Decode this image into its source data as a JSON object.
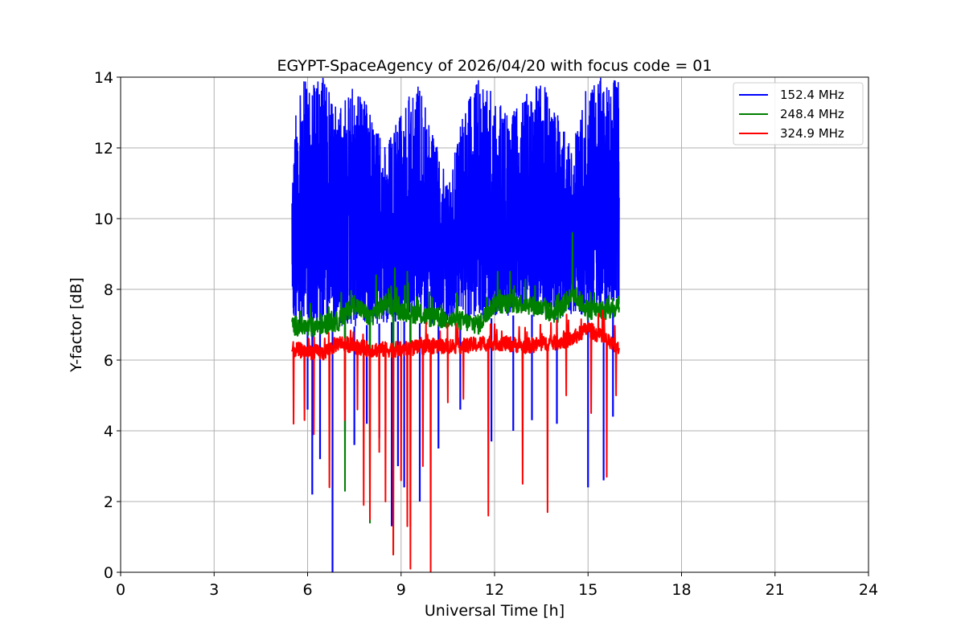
{
  "chart_data": {
    "type": "line",
    "title": "EGYPT-SpaceAgency of 2026/04/20 with focus code = 01",
    "xlabel": "Universal Time [h]",
    "ylabel": "Y-factor [dB]",
    "xlim": [
      0,
      24
    ],
    "ylim": [
      0,
      14
    ],
    "xticks": [
      0,
      3,
      6,
      9,
      12,
      15,
      18,
      21,
      24
    ],
    "yticks": [
      0,
      2,
      4,
      6,
      8,
      10,
      12,
      14
    ],
    "xtick_labels": [
      "0",
      "3",
      "6",
      "9",
      "12",
      "15",
      "18",
      "21",
      "24"
    ],
    "ytick_labels": [
      "0",
      "2",
      "4",
      "6",
      "8",
      "10",
      "12",
      "14"
    ],
    "grid": true,
    "legend_position": "top-right",
    "series": [
      {
        "name": "152.4 MHz",
        "color": "#0000ff",
        "t_start": 5.5,
        "t_end": 16.0,
        "band_high": [
          [
            5.5,
            11.2
          ],
          [
            5.7,
            14.0
          ],
          [
            6.5,
            14.0
          ],
          [
            7.0,
            13.0
          ],
          [
            7.5,
            14.0
          ],
          [
            8.5,
            12.0
          ],
          [
            9.5,
            14.0
          ],
          [
            10.5,
            11.0
          ],
          [
            11.0,
            13.0
          ],
          [
            11.5,
            14.0
          ],
          [
            12.5,
            13.0
          ],
          [
            13.5,
            14.0
          ],
          [
            14.5,
            12.0
          ],
          [
            15.0,
            14.0
          ],
          [
            15.5,
            14.0
          ],
          [
            16.0,
            14.0
          ]
        ],
        "band_low": [
          [
            5.5,
            6.6
          ],
          [
            6.0,
            7.0
          ],
          [
            7.0,
            6.9
          ],
          [
            8.0,
            7.0
          ],
          [
            9.0,
            7.1
          ],
          [
            10.0,
            7.0
          ],
          [
            11.0,
            7.0
          ],
          [
            12.0,
            7.2
          ],
          [
            13.0,
            7.3
          ],
          [
            14.0,
            7.2
          ],
          [
            15.0,
            7.3
          ],
          [
            16.0,
            7.4
          ]
        ],
        "dips": [
          [
            6.0,
            4.6
          ],
          [
            6.15,
            2.2
          ],
          [
            6.4,
            3.2
          ],
          [
            6.8,
            0.0
          ],
          [
            7.2,
            4.0
          ],
          [
            7.5,
            3.6
          ],
          [
            7.9,
            4.2
          ],
          [
            8.3,
            3.8
          ],
          [
            8.7,
            1.3
          ],
          [
            8.9,
            3.0
          ],
          [
            9.1,
            2.4
          ],
          [
            9.3,
            4.5
          ],
          [
            9.6,
            2.0
          ],
          [
            10.2,
            3.5
          ],
          [
            10.9,
            4.6
          ],
          [
            11.9,
            3.7
          ],
          [
            12.6,
            4.0
          ],
          [
            13.2,
            4.3
          ],
          [
            14.0,
            4.2
          ],
          [
            15.0,
            2.4
          ],
          [
            15.5,
            2.6
          ],
          [
            15.8,
            4.4
          ]
        ]
      },
      {
        "name": "248.4 MHz",
        "color": "#008000",
        "t_start": 5.5,
        "t_end": 16.0,
        "baseline": [
          [
            5.5,
            7.0
          ],
          [
            6.0,
            6.9
          ],
          [
            7.0,
            7.1
          ],
          [
            7.5,
            7.6
          ],
          [
            8.0,
            7.2
          ],
          [
            8.5,
            7.6
          ],
          [
            9.0,
            7.4
          ],
          [
            10.0,
            7.2
          ],
          [
            11.0,
            7.1
          ],
          [
            11.5,
            7.0
          ],
          [
            12.0,
            7.6
          ],
          [
            13.0,
            7.6
          ],
          [
            14.0,
            7.3
          ],
          [
            14.5,
            7.9
          ],
          [
            15.0,
            7.4
          ],
          [
            16.0,
            7.4
          ]
        ],
        "peaks": [
          [
            7.2,
            8.0
          ],
          [
            8.2,
            8.4
          ],
          [
            8.8,
            8.6
          ],
          [
            9.2,
            8.5
          ],
          [
            12.1,
            8.5
          ],
          [
            12.5,
            8.5
          ],
          [
            13.3,
            8.1
          ],
          [
            14.5,
            9.6
          ],
          [
            15.2,
            7.9
          ]
        ],
        "dips": [
          [
            7.2,
            2.3
          ],
          [
            8.0,
            1.4
          ],
          [
            8.75,
            0.5
          ],
          [
            9.3,
            1.3
          ]
        ]
      },
      {
        "name": "324.9 MHz",
        "color": "#ff0000",
        "t_start": 5.5,
        "t_end": 16.0,
        "baseline": [
          [
            5.5,
            6.3
          ],
          [
            6.5,
            6.2
          ],
          [
            7.0,
            6.5
          ],
          [
            8.0,
            6.3
          ],
          [
            9.0,
            6.3
          ],
          [
            10.0,
            6.4
          ],
          [
            11.0,
            6.4
          ],
          [
            12.0,
            6.5
          ],
          [
            13.0,
            6.4
          ],
          [
            14.0,
            6.5
          ],
          [
            14.5,
            6.6
          ],
          [
            15.0,
            6.9
          ],
          [
            15.5,
            6.6
          ],
          [
            16.0,
            6.3
          ]
        ],
        "dips": [
          [
            5.55,
            4.2
          ],
          [
            5.9,
            4.3
          ],
          [
            6.2,
            3.9
          ],
          [
            6.7,
            2.4
          ],
          [
            7.2,
            4.3
          ],
          [
            7.6,
            4.6
          ],
          [
            7.8,
            1.9
          ],
          [
            8.0,
            1.5
          ],
          [
            8.3,
            3.4
          ],
          [
            8.5,
            2.0
          ],
          [
            8.75,
            0.5
          ],
          [
            9.0,
            2.6
          ],
          [
            9.2,
            1.3
          ],
          [
            9.3,
            0.1
          ],
          [
            9.7,
            3.0
          ],
          [
            9.95,
            0.0
          ],
          [
            10.5,
            4.8
          ],
          [
            11.0,
            4.9
          ],
          [
            11.8,
            1.6
          ],
          [
            12.9,
            2.5
          ],
          [
            13.7,
            1.7
          ],
          [
            14.3,
            5.0
          ],
          [
            15.1,
            4.5
          ],
          [
            15.6,
            2.7
          ],
          [
            15.9,
            5.0
          ]
        ]
      }
    ]
  }
}
